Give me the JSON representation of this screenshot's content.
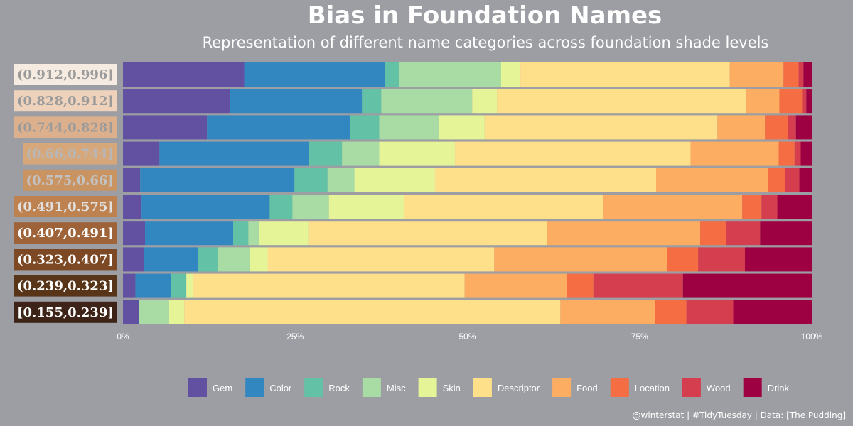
{
  "chart_data": {
    "type": "bar",
    "orientation": "horizontal",
    "stacked": true,
    "normalized": true,
    "title": "Bias in Foundation Names",
    "subtitle": "Representation of different name categories across foundation shade levels",
    "categories": [
      "(0.912,0.996]",
      "(0.828,0.912]",
      "(0.744,0.828]",
      "(0.66,0.744]",
      "(0.575,0.66]",
      "(0.491,0.575]",
      "(0.407,0.491]",
      "(0.323,0.407]",
      "(0.239,0.323]",
      "[0.155,0.239]"
    ],
    "category_colors": [
      "#f5ebe0",
      "#efd2bb",
      "#ddb08d",
      "#d7a77c",
      "#c99461",
      "#bd824f",
      "#9e6338",
      "#7c4924",
      "#583418",
      "#3d2318"
    ],
    "category_text_colors": [
      "#9b9b9b",
      "#9b9b9b",
      "#9b9b9b",
      "#b7b7b7",
      "#c2c2c2",
      "#e0e0e0",
      "#ffffff",
      "#ffffff",
      "#ffffff",
      "#ffffff"
    ],
    "xlim": [
      0,
      100
    ],
    "x_ticks": [
      "0%",
      "25%",
      "50%",
      "75%",
      "100%"
    ],
    "series": [
      {
        "name": "Gem",
        "color": "#6250a1",
        "values": [
          17.6,
          15.5,
          12.2,
          5.3,
          2.5,
          2.7,
          3.2,
          3.1,
          1.8,
          2.3
        ]
      },
      {
        "name": "Color",
        "color": "#3387c0",
        "values": [
          20.4,
          19.2,
          20.8,
          21.7,
          22.4,
          18.6,
          12.8,
          7.8,
          5.2,
          0
        ]
      },
      {
        "name": "Rock",
        "color": "#63c1a6",
        "values": [
          2.1,
          2.8,
          4.2,
          4.8,
          4.8,
          3.3,
          2.2,
          2.9,
          2.2,
          0
        ]
      },
      {
        "name": "Misc",
        "color": "#a9dca5",
        "values": [
          14.8,
          13.2,
          8.7,
          5.4,
          3.9,
          5.3,
          1.6,
          4.6,
          0,
          4.4
        ]
      },
      {
        "name": "Skin",
        "color": "#e6f498",
        "values": [
          2.8,
          3.6,
          6.6,
          11.0,
          11.7,
          10.9,
          7.1,
          2.6,
          1.0,
          2.2
        ]
      },
      {
        "name": "Descriptor",
        "color": "#fee08b",
        "values": [
          30.4,
          36.1,
          33.8,
          34.2,
          32.1,
          28.9,
          34.7,
          32.9,
          39.4,
          54.6
        ]
      },
      {
        "name": "Food",
        "color": "#fdad61",
        "values": [
          7.8,
          4.9,
          6.9,
          12.8,
          16.3,
          20.2,
          22.2,
          25.1,
          14.8,
          13.7
        ]
      },
      {
        "name": "Location",
        "color": "#f46d43",
        "values": [
          2.2,
          3.3,
          3.3,
          2.3,
          2.4,
          2.8,
          3.8,
          4.5,
          3.9,
          4.6
        ]
      },
      {
        "name": "Wood",
        "color": "#d53e4f",
        "values": [
          0.7,
          0.6,
          1.2,
          0.9,
          2.1,
          2.3,
          4.9,
          6.8,
          13.0,
          6.8
        ]
      },
      {
        "name": "Drink",
        "color": "#9e0142",
        "values": [
          1.2,
          0.8,
          2.3,
          1.6,
          1.8,
          5.0,
          7.5,
          9.7,
          18.7,
          11.4
        ]
      }
    ],
    "legend_position": "bottom",
    "grid": false
  },
  "caption": "@winterstat | #TidyTuesday | Data: [The Pudding]"
}
